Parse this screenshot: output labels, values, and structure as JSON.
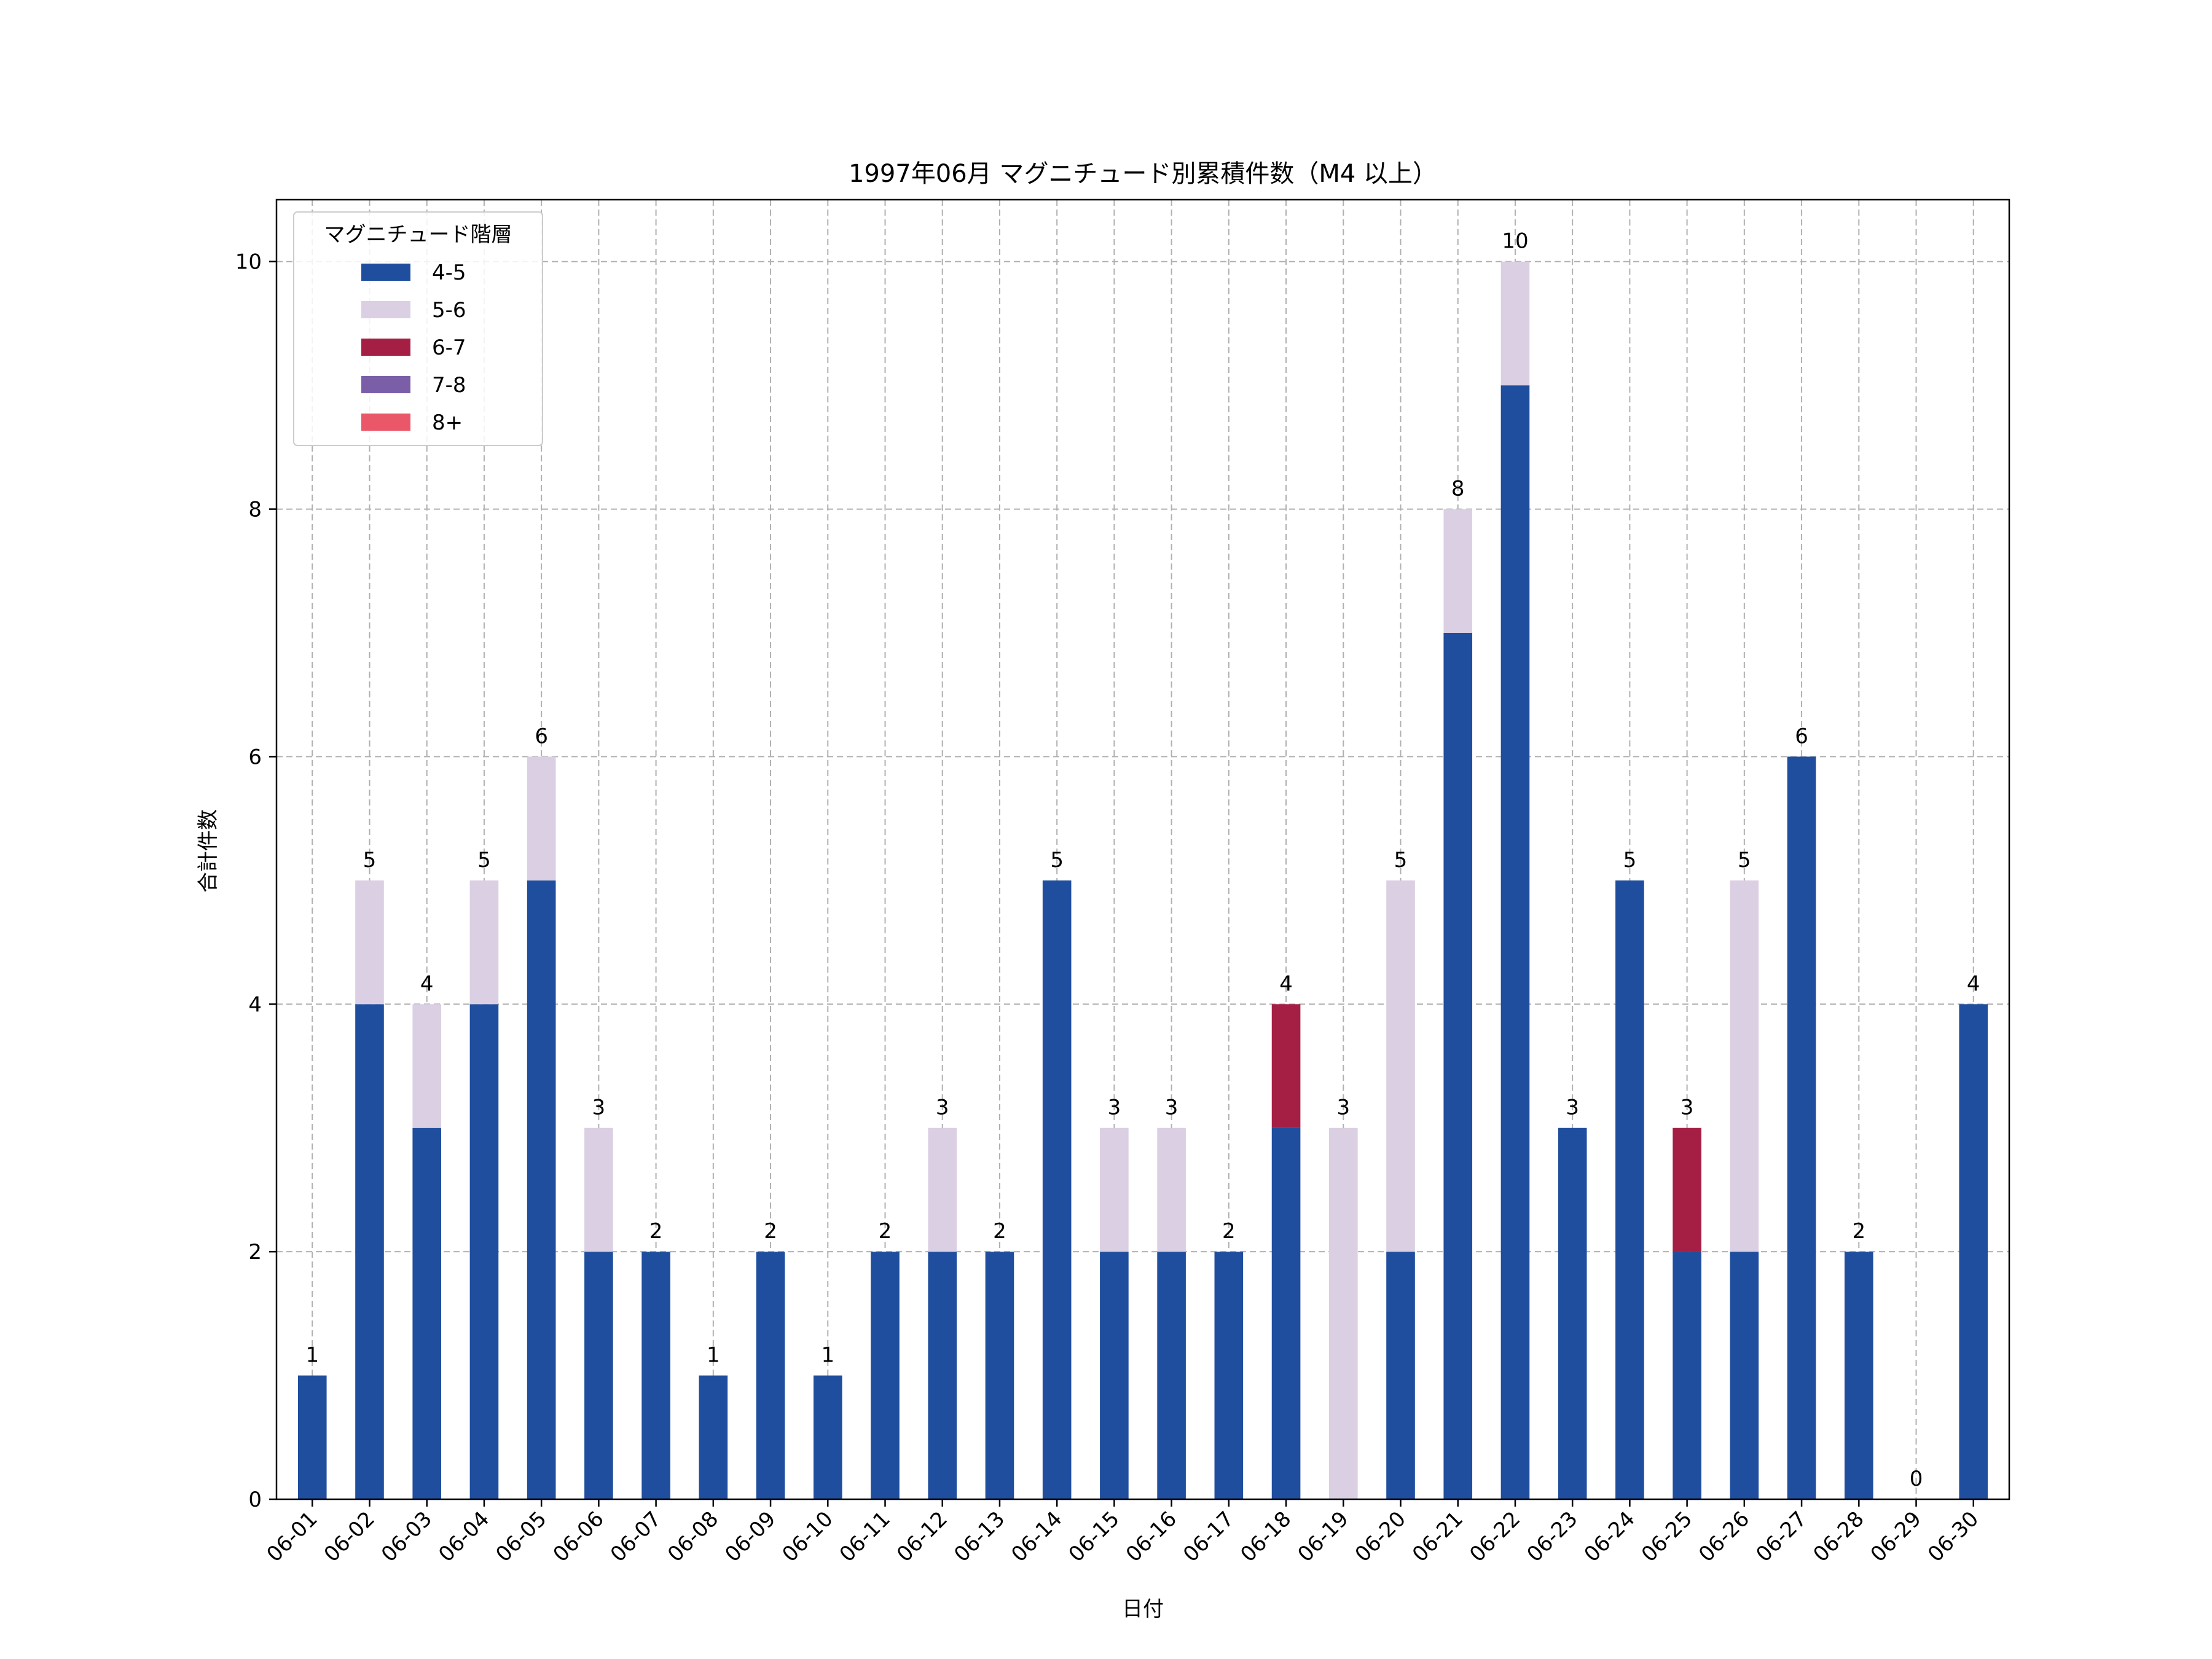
{
  "chart_data": {
    "type": "bar",
    "stacked": true,
    "title": "1997年06月 マグニチュード別累積件数（M4 以上）",
    "xlabel": "日付",
    "ylabel": "合計件数",
    "ylim": [
      0,
      10.5
    ],
    "yticks": [
      0,
      2,
      4,
      6,
      8,
      10
    ],
    "grid": true,
    "legend": {
      "title": "マグニチュード階層",
      "placement": "top-left"
    },
    "categories": [
      "06-01",
      "06-02",
      "06-03",
      "06-04",
      "06-05",
      "06-06",
      "06-07",
      "06-08",
      "06-09",
      "06-10",
      "06-11",
      "06-12",
      "06-13",
      "06-14",
      "06-15",
      "06-16",
      "06-17",
      "06-18",
      "06-19",
      "06-20",
      "06-21",
      "06-22",
      "06-23",
      "06-24",
      "06-25",
      "06-26",
      "06-27",
      "06-28",
      "06-29",
      "06-30"
    ],
    "series": [
      {
        "name": "4-5",
        "color": "#1f4e9e",
        "values": [
          1,
          4,
          3,
          4,
          5,
          2,
          2,
          1,
          2,
          1,
          2,
          2,
          2,
          5,
          2,
          2,
          2,
          3,
          0,
          2,
          7,
          9,
          3,
          5,
          2,
          2,
          6,
          2,
          0,
          4
        ]
      },
      {
        "name": "5-6",
        "color": "#dbcfe3",
        "values": [
          0,
          1,
          1,
          1,
          1,
          1,
          0,
          0,
          0,
          0,
          0,
          1,
          0,
          0,
          1,
          1,
          0,
          0,
          3,
          3,
          1,
          1,
          0,
          0,
          0,
          3,
          0,
          0,
          0,
          0
        ]
      },
      {
        "name": "6-7",
        "color": "#a51f45",
        "values": [
          0,
          0,
          0,
          0,
          0,
          0,
          0,
          0,
          0,
          0,
          0,
          0,
          0,
          0,
          0,
          0,
          0,
          1,
          0,
          0,
          0,
          0,
          0,
          0,
          1,
          0,
          0,
          0,
          0,
          0
        ]
      },
      {
        "name": "7-8",
        "color": "#7a5fa8",
        "values": [
          0,
          0,
          0,
          0,
          0,
          0,
          0,
          0,
          0,
          0,
          0,
          0,
          0,
          0,
          0,
          0,
          0,
          0,
          0,
          0,
          0,
          0,
          0,
          0,
          0,
          0,
          0,
          0,
          0,
          0
        ]
      },
      {
        "name": "8+",
        "color": "#e95768",
        "values": [
          0,
          0,
          0,
          0,
          0,
          0,
          0,
          0,
          0,
          0,
          0,
          0,
          0,
          0,
          0,
          0,
          0,
          0,
          0,
          0,
          0,
          0,
          0,
          0,
          0,
          0,
          0,
          0,
          0,
          0
        ]
      }
    ],
    "totals": [
      1,
      5,
      4,
      5,
      6,
      3,
      2,
      1,
      2,
      1,
      2,
      3,
      2,
      5,
      3,
      3,
      2,
      4,
      3,
      5,
      8,
      10,
      3,
      5,
      3,
      5,
      6,
      2,
      0,
      4
    ]
  }
}
